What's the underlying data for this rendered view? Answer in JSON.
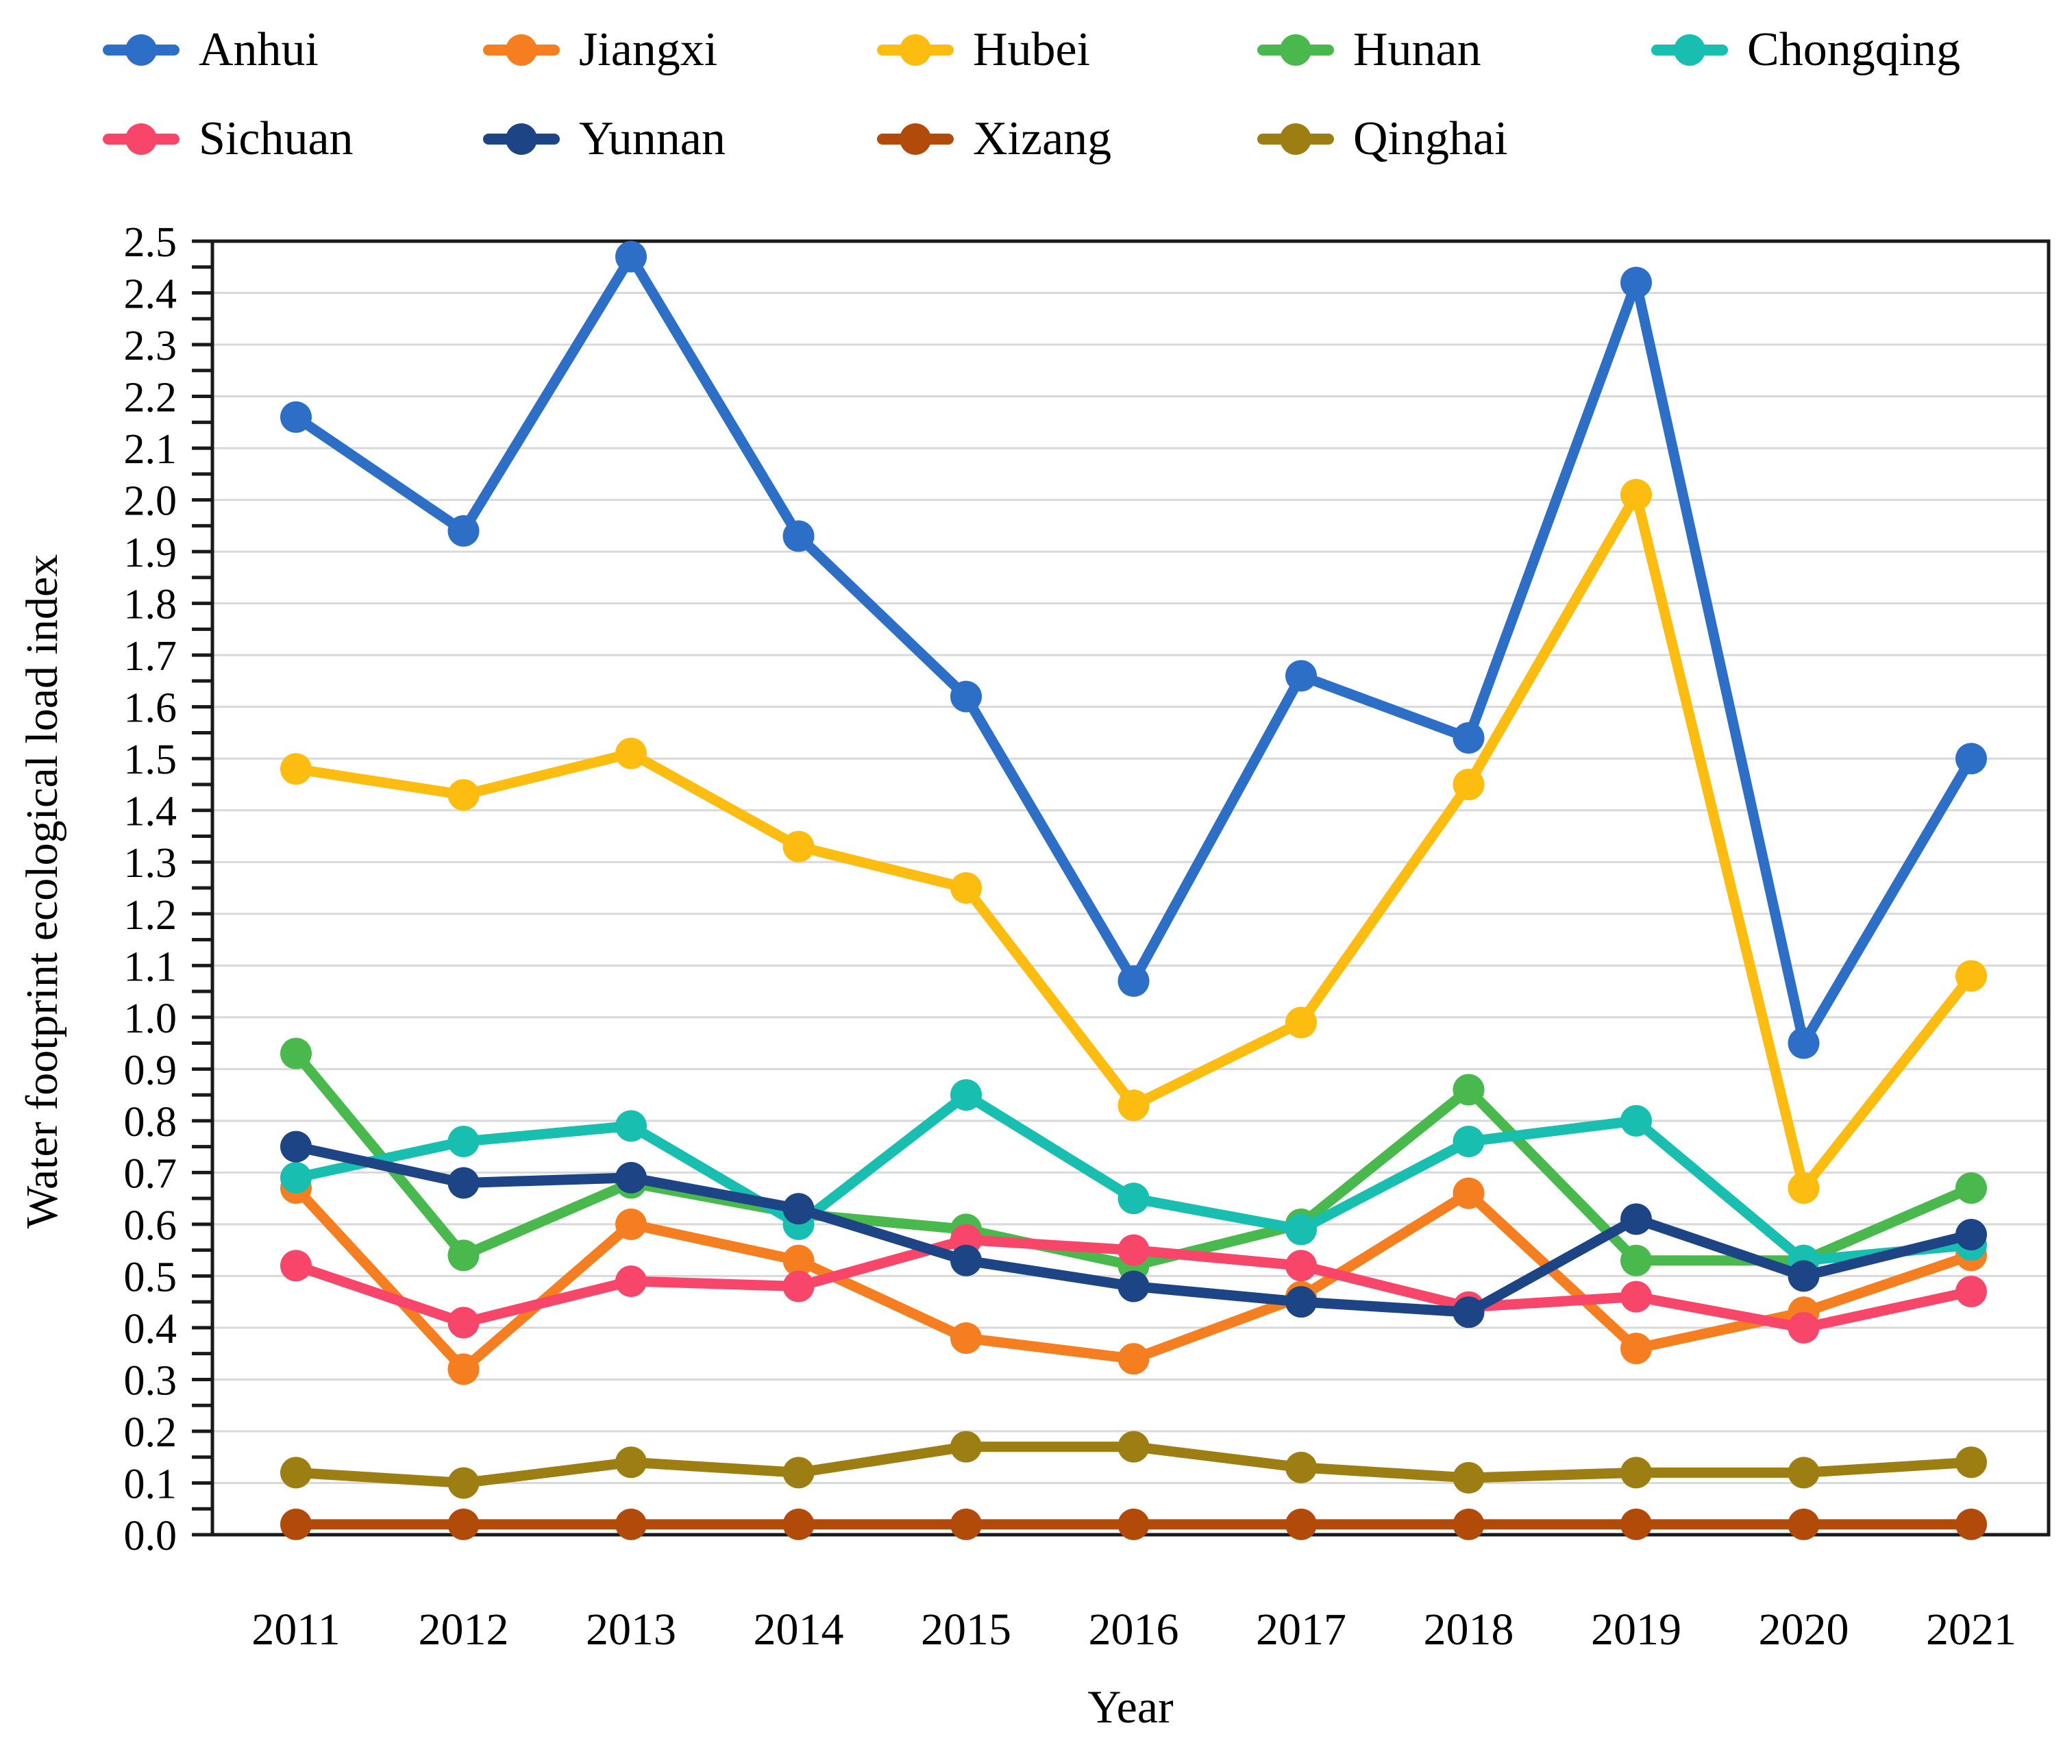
{
  "chart_data": {
    "type": "line",
    "title": "",
    "xlabel": "Year",
    "ylabel": "Water footprint ecological load index",
    "x": [
      2011,
      2012,
      2013,
      2014,
      2015,
      2016,
      2017,
      2018,
      2019,
      2020,
      2021
    ],
    "ylim": [
      0.0,
      2.5
    ],
    "ytick_step": 0.1,
    "minor_tick_step": 0.05,
    "grid": true,
    "legend_position": "top",
    "series": [
      {
        "name": "Anhui",
        "color": "#2d6fc7",
        "values": [
          2.16,
          1.94,
          2.47,
          1.93,
          1.62,
          1.07,
          1.66,
          1.54,
          2.42,
          0.95,
          1.5
        ]
      },
      {
        "name": "Jiangxi",
        "color": "#f57e20",
        "values": [
          0.67,
          0.32,
          0.6,
          0.53,
          0.38,
          0.34,
          0.46,
          0.66,
          0.36,
          0.43,
          0.54
        ]
      },
      {
        "name": "Hubei",
        "color": "#fcbd10",
        "values": [
          1.48,
          1.43,
          1.51,
          1.33,
          1.25,
          0.83,
          0.99,
          1.45,
          2.01,
          0.67,
          1.08
        ]
      },
      {
        "name": "Hunan",
        "color": "#49b94d",
        "values": [
          0.93,
          0.54,
          0.68,
          0.62,
          0.59,
          0.52,
          0.6,
          0.86,
          0.53,
          0.53,
          0.67
        ]
      },
      {
        "name": "Chongqing",
        "color": "#18bfb0",
        "values": [
          0.69,
          0.76,
          0.79,
          0.6,
          0.85,
          0.65,
          0.59,
          0.76,
          0.8,
          0.53,
          0.56
        ]
      },
      {
        "name": "Sichuan",
        "color": "#f8466a",
        "values": [
          0.52,
          0.41,
          0.49,
          0.48,
          0.57,
          0.55,
          0.52,
          0.44,
          0.46,
          0.4,
          0.47
        ]
      },
      {
        "name": "Yunnan",
        "color": "#1d4586",
        "values": [
          0.75,
          0.68,
          0.69,
          0.63,
          0.53,
          0.48,
          0.45,
          0.43,
          0.61,
          0.5,
          0.58
        ]
      },
      {
        "name": "Xizang",
        "color": "#b24a0a",
        "values": [
          0.02,
          0.02,
          0.02,
          0.02,
          0.02,
          0.02,
          0.02,
          0.02,
          0.02,
          0.02,
          0.02
        ]
      },
      {
        "name": "Qinghai",
        "color": "#9d7e12",
        "values": [
          0.12,
          0.1,
          0.14,
          0.12,
          0.17,
          0.17,
          0.13,
          0.11,
          0.12,
          0.12,
          0.14
        ]
      }
    ]
  },
  "legend": {
    "rows": [
      [
        "Anhui",
        "Jiangxi",
        "Hubei",
        "Hunan",
        "Chongqing"
      ],
      [
        "Sichuan",
        "Yunnan",
        "Xizang",
        "Qinghai"
      ]
    ]
  },
  "style": {
    "grid_color": "#d9d9d9",
    "frame_color": "#1a1a1a",
    "tick_label_color": "#000000"
  }
}
